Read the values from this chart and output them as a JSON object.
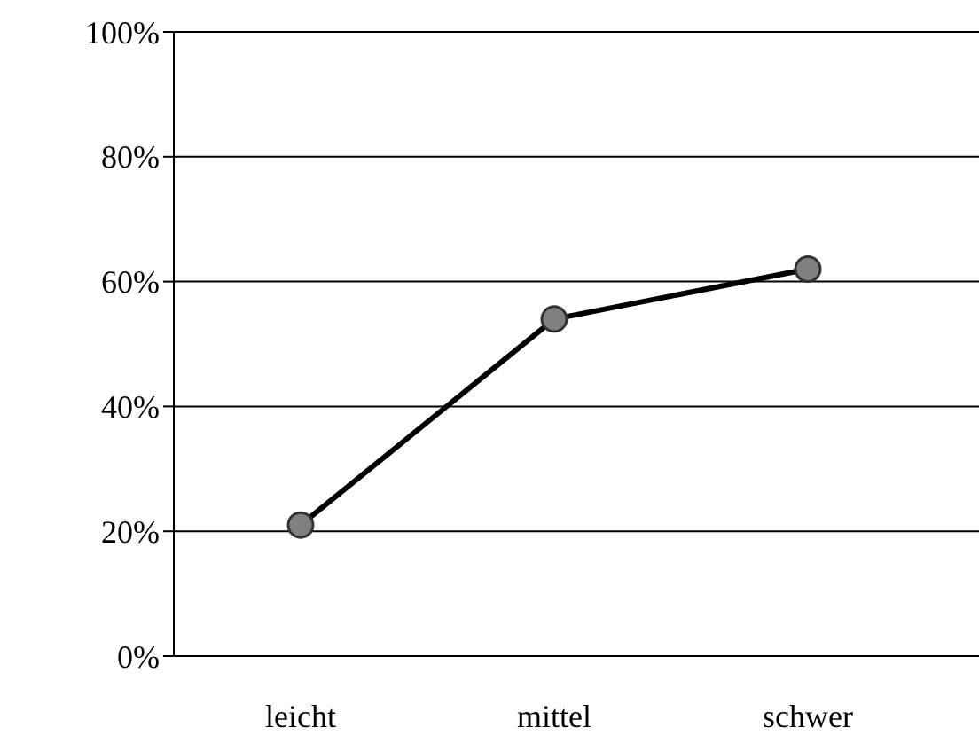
{
  "chart_data": {
    "type": "line",
    "categories": [
      "leicht",
      "mittel",
      "schwer"
    ],
    "series": [
      {
        "color": "#000000",
        "values": [
          21,
          54,
          62
        ]
      }
    ],
    "ylim": [
      0,
      100
    ],
    "yticks": [
      {
        "value": 0,
        "label": "0%"
      },
      {
        "value": 20,
        "label": "20%"
      },
      {
        "value": 40,
        "label": "40%"
      },
      {
        "value": 60,
        "label": "60%"
      },
      {
        "value": 80,
        "label": "80%"
      },
      {
        "value": 100,
        "label": "100%"
      }
    ],
    "grid": "y",
    "marker": "circle",
    "line_style": "solid"
  }
}
